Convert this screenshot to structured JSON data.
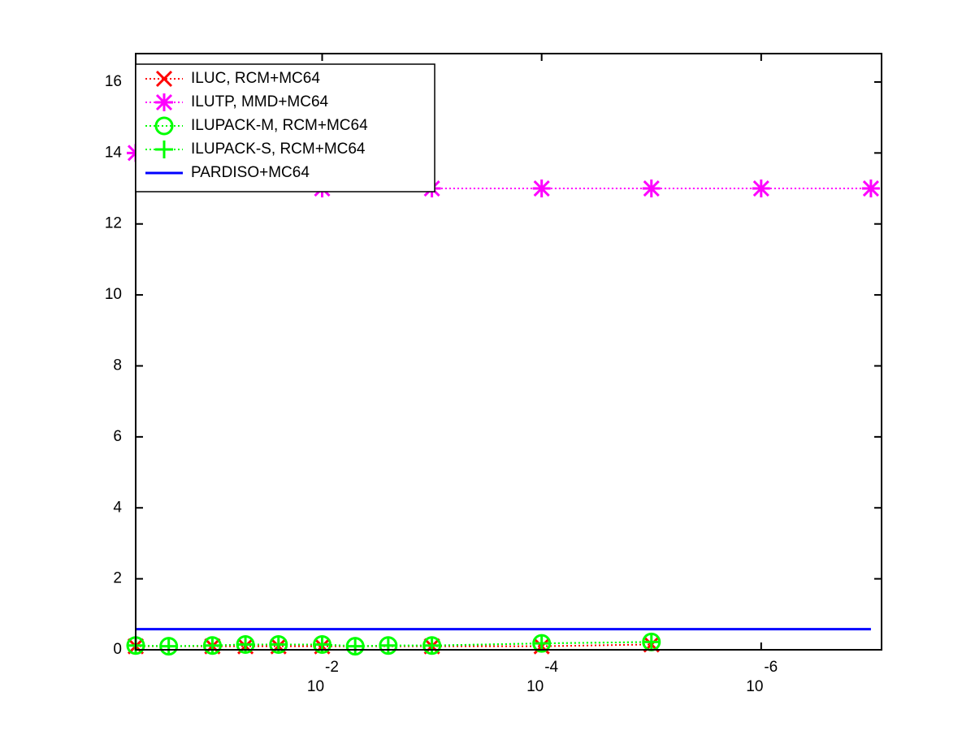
{
  "chart_data": {
    "type": "line",
    "xscale": "log",
    "xlim": [
      0.5,
      8e-08
    ],
    "xticks": [
      {
        "value": 0.01,
        "label": "10",
        "exponent": "-2"
      },
      {
        "value": 0.0001,
        "label": "10",
        "exponent": "-4"
      },
      {
        "value": 1e-06,
        "label": "10",
        "exponent": "-6"
      }
    ],
    "ylim": [
      0,
      16.8
    ],
    "yticks": [
      0,
      2,
      4,
      6,
      8,
      10,
      12,
      14,
      16
    ],
    "grid": false,
    "legend": "northwest",
    "series": [
      {
        "name": "ILUC, RCM+MC64",
        "color": "#ff0000",
        "line": "dotted",
        "marker": "x",
        "x": [
          0.5,
          0.1,
          0.05,
          0.025,
          0.01,
          0.001,
          0.0001,
          1e-05
        ],
        "values": [
          0.1,
          0.1,
          0.1,
          0.1,
          0.1,
          0.1,
          0.1,
          0.15
        ]
      },
      {
        "name": "ILUTP, MMD+MC64",
        "color": "#ff00ff",
        "line": "dotted",
        "marker": "star",
        "x": [
          0.5,
          0.01,
          0.001,
          0.0001,
          1e-05,
          1e-06,
          1e-07
        ],
        "values": [
          14,
          13,
          13,
          13,
          13,
          13,
          13
        ]
      },
      {
        "name": "ILUPACK-M, RCM+MC64",
        "color": "#00ff00",
        "line": "dotted",
        "marker": "circle",
        "x": [
          0.5,
          0.25,
          0.1,
          0.05,
          0.025,
          0.01,
          0.005,
          0.0025,
          0.001,
          0.0001,
          1e-05
        ],
        "values": [
          0.12,
          0.1,
          0.12,
          0.15,
          0.15,
          0.15,
          0.1,
          0.12,
          0.12,
          0.18,
          0.22
        ]
      },
      {
        "name": "ILUPACK-S, RCM+MC64",
        "color": "#00ff00",
        "line": "dotted",
        "marker": "plus",
        "x": [
          0.5,
          0.25,
          0.1,
          0.05,
          0.025,
          0.01,
          0.005,
          0.0025,
          0.001,
          0.0001,
          1e-05
        ],
        "values": [
          0.12,
          0.1,
          0.12,
          0.15,
          0.15,
          0.15,
          0.1,
          0.12,
          0.12,
          0.18,
          0.22
        ]
      },
      {
        "name": "PARDISO+MC64",
        "color": "#0000ff",
        "line": "solid",
        "marker": "none",
        "x": [
          0.5,
          1e-07
        ],
        "values": [
          0.58,
          0.58
        ]
      }
    ]
  }
}
